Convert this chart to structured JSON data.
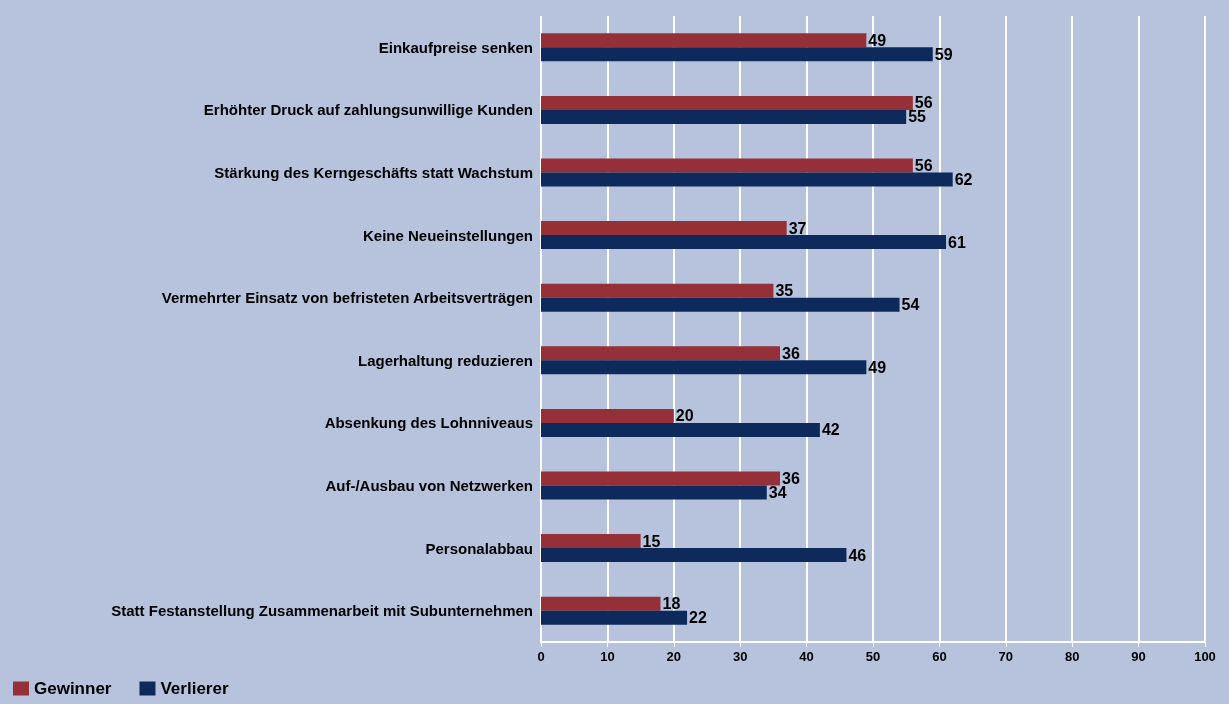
{
  "chart_data": {
    "type": "bar",
    "orientation": "horizontal",
    "categories": [
      "Einkaufpreise senken",
      "Erhöhter Druck auf zahlungsunwillige Kunden",
      "Stärkung des Kerngeschäfts statt Wachstum",
      "Keine Neueinstellungen",
      "Vermehrter Einsatz von befristeten Arbeitsverträgen",
      "Lagerhaltung reduzieren",
      "Absenkung des Lohnniveaus",
      "Auf-/Ausbau von Netzwerken",
      "Personalabbau",
      "Statt Festanstellung Zusammenarbeit mit Subunternehmen"
    ],
    "series": [
      {
        "name": "Gewinner",
        "color": "#963038",
        "values": [
          49,
          56,
          56,
          37,
          35,
          36,
          20,
          36,
          15,
          18
        ]
      },
      {
        "name": "Verlierer",
        "color": "#0e2a5c",
        "values": [
          59,
          55,
          62,
          61,
          54,
          49,
          42,
          34,
          46,
          22
        ]
      }
    ],
    "xlim": [
      0,
      100
    ],
    "xticks": [
      0,
      10,
      20,
      30,
      40,
      50,
      60,
      70,
      80,
      90,
      100
    ],
    "grid": "x",
    "legend": "bottom left",
    "data_labels": true
  }
}
